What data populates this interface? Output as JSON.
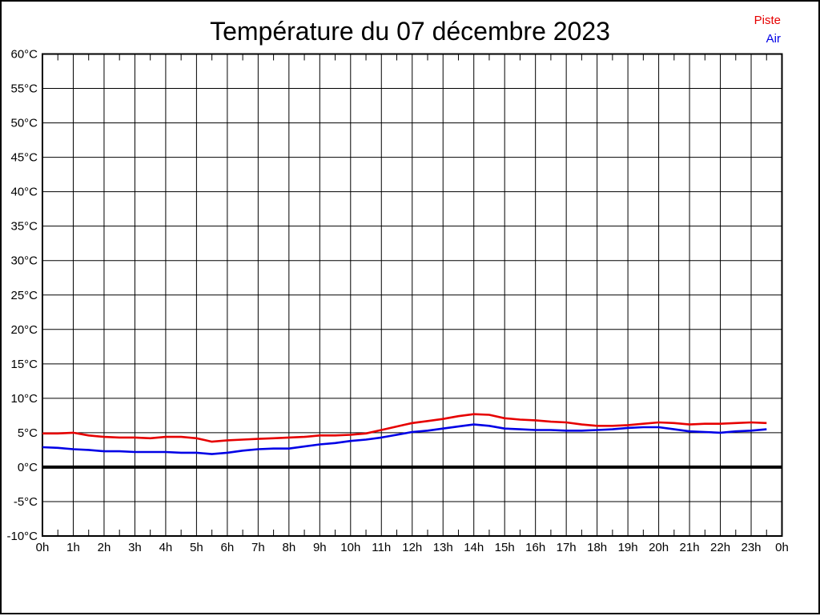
{
  "title": "Température du 07 décembre 2023",
  "legend": {
    "piste": {
      "label": "Piste",
      "color": "#e60000"
    },
    "air": {
      "label": "Air",
      "color": "#0000e6"
    }
  },
  "chart_data": {
    "type": "line",
    "title": "Température du 07 décembre 2023",
    "xlabel": "",
    "ylabel": "",
    "xlim": [
      0,
      24
    ],
    "ylim": [
      -10,
      60
    ],
    "grid": true,
    "zero_line_value": 0,
    "legend_position": "top-right",
    "axis_color": "#000000",
    "background_color": "#ffffff",
    "x_tick_hours": [
      0,
      1,
      2,
      3,
      4,
      5,
      6,
      7,
      8,
      9,
      10,
      11,
      12,
      13,
      14,
      15,
      16,
      17,
      18,
      19,
      20,
      21,
      22,
      23,
      24
    ],
    "x_tick_labels": [
      "0h",
      "1h",
      "2h",
      "3h",
      "4h",
      "5h",
      "6h",
      "7h",
      "8h",
      "9h",
      "10h",
      "11h",
      "12h",
      "13h",
      "14h",
      "15h",
      "16h",
      "17h",
      "18h",
      "19h",
      "20h",
      "21h",
      "22h",
      "23h",
      "0h"
    ],
    "x_minor_tick_step": 0.5,
    "y_tick_values": [
      60,
      55,
      50,
      45,
      40,
      35,
      30,
      25,
      20,
      15,
      10,
      5,
      0,
      -5,
      -10
    ],
    "y_tick_labels": [
      "60°C",
      "55°C",
      "50°C",
      "45°C",
      "40°C",
      "35°C",
      "30°C",
      "25°C",
      "20°C",
      "15°C",
      "10°C",
      "5°C",
      "0°C",
      "-5°C",
      "-10°C"
    ],
    "x": [
      0,
      0.5,
      1,
      1.5,
      2,
      2.5,
      3,
      3.5,
      4,
      4.5,
      5,
      5.5,
      6,
      6.5,
      7,
      7.5,
      8,
      8.5,
      9,
      9.5,
      10,
      10.5,
      11,
      11.5,
      12,
      12.5,
      13,
      13.5,
      14,
      14.5,
      15,
      15.5,
      16,
      16.5,
      17,
      17.5,
      18,
      18.5,
      19,
      19.5,
      20,
      20.5,
      21,
      21.5,
      22,
      22.5,
      23,
      23.5
    ],
    "series": [
      {
        "name": "Piste",
        "color": "#e60000",
        "values": [
          4.9,
          4.9,
          5.0,
          4.6,
          4.4,
          4.3,
          4.3,
          4.2,
          4.4,
          4.4,
          4.2,
          3.7,
          3.9,
          4.0,
          4.1,
          4.2,
          4.3,
          4.4,
          4.6,
          4.6,
          4.7,
          4.9,
          5.4,
          5.9,
          6.4,
          6.7,
          7.0,
          7.4,
          7.7,
          7.6,
          7.1,
          6.9,
          6.8,
          6.6,
          6.5,
          6.2,
          6.0,
          6.0,
          6.1,
          6.3,
          6.5,
          6.4,
          6.2,
          6.3,
          6.3,
          6.4,
          6.5,
          6.4
        ]
      },
      {
        "name": "Air",
        "color": "#0000e6",
        "values": [
          2.9,
          2.8,
          2.6,
          2.5,
          2.3,
          2.3,
          2.2,
          2.2,
          2.2,
          2.1,
          2.1,
          1.9,
          2.1,
          2.4,
          2.6,
          2.7,
          2.7,
          3.0,
          3.3,
          3.5,
          3.8,
          4.0,
          4.3,
          4.7,
          5.1,
          5.3,
          5.6,
          5.9,
          6.2,
          6.0,
          5.6,
          5.5,
          5.4,
          5.4,
          5.3,
          5.3,
          5.4,
          5.5,
          5.7,
          5.8,
          5.8,
          5.5,
          5.2,
          5.1,
          5.0,
          5.2,
          5.3,
          5.5
        ]
      }
    ]
  }
}
